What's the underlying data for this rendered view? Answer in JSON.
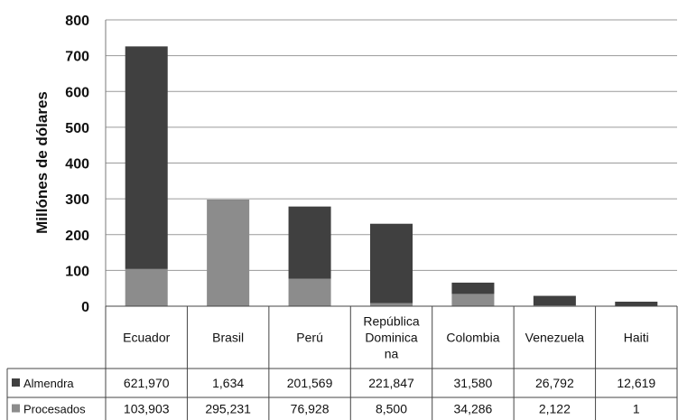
{
  "chart_data": {
    "type": "bar",
    "stacked": true,
    "title": "",
    "xlabel": "",
    "ylabel": "Millónes de dólares",
    "ylim": [
      0,
      800
    ],
    "yticks": [
      "0",
      "100",
      "200",
      "300",
      "400",
      "500",
      "600",
      "700",
      "800"
    ],
    "grid": true,
    "legend": "data-table-left",
    "categories": [
      "Ecuador",
      "Brasil",
      "Perú",
      "República Dominicana",
      "Colombia",
      "Venezuela",
      "Haiti"
    ],
    "category_label_lines": [
      [
        "Ecuador"
      ],
      [
        "Brasil"
      ],
      [
        "Perú"
      ],
      [
        "República",
        "Dominica",
        "na"
      ],
      [
        "Colombia"
      ],
      [
        "Venezuela"
      ],
      [
        "Haiti"
      ]
    ],
    "series": [
      {
        "name": "Almendra",
        "color": "#404040",
        "values": [
          621.97,
          1.634,
          201.569,
          221.847,
          31.58,
          26.792,
          12.619
        ],
        "labels": [
          "621,970",
          "1,634",
          "201,569",
          "221,847",
          "31,580",
          "26,792",
          "12,619"
        ]
      },
      {
        "name": "Procesados",
        "color": "#8c8c8c",
        "values": [
          103.903,
          295.231,
          76.928,
          8.5,
          34.286,
          2.122,
          0.001
        ],
        "labels": [
          "103,903",
          "295,231",
          "76,928",
          "8,500",
          "34,286",
          "2,122",
          "1"
        ]
      }
    ]
  }
}
